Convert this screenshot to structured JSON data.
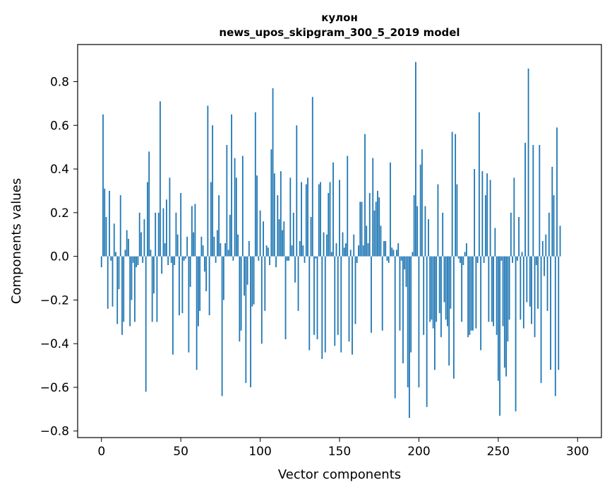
{
  "chart_data": {
    "type": "bar",
    "title": "кулон",
    "subtitle": "news_upos_skipgram_300_5_2019 model",
    "xlabel": "Vector components",
    "ylabel": "Components values",
    "xlim": [
      -15,
      315
    ],
    "ylim": [
      -0.83,
      0.97
    ],
    "xticks": [
      0,
      50,
      100,
      150,
      200,
      250,
      300
    ],
    "yticks": [
      -0.8,
      -0.6,
      -0.4,
      -0.2,
      0.0,
      0.2,
      0.4,
      0.6,
      0.8
    ],
    "ytick_labels": [
      "−0.8",
      "−0.6",
      "−0.4",
      "−0.2",
      "0.0",
      "0.2",
      "0.4",
      "0.6",
      "0.8"
    ],
    "bar_color": "#1f77b4",
    "values": [
      -0.05,
      0.65,
      0.31,
      0.18,
      -0.24,
      0.3,
      -0.02,
      -0.23,
      0.15,
      0.02,
      -0.31,
      -0.15,
      0.28,
      -0.36,
      -0.3,
      0.03,
      0.12,
      0.08,
      -0.32,
      -0.2,
      -0.03,
      -0.3,
      -0.05,
      -0.04,
      0.2,
      0.11,
      -0.03,
      0.17,
      -0.62,
      0.34,
      0.48,
      0.03,
      -0.3,
      -0.17,
      0.2,
      -0.3,
      0.2,
      0.71,
      -0.08,
      0.22,
      0.06,
      0.26,
      -0.04,
      0.36,
      -0.03,
      -0.45,
      -0.04,
      0.2,
      0.1,
      -0.27,
      0.29,
      -0.26,
      -0.02,
      -0.01,
      0.09,
      -0.44,
      -0.14,
      0.23,
      0.11,
      0.24,
      -0.52,
      -0.32,
      -0.25,
      0.09,
      0.05,
      -0.07,
      -0.16,
      0.69,
      -0.27,
      0.34,
      0.6,
      0.09,
      -0.03,
      0.12,
      0.28,
      0.06,
      -0.64,
      -0.2,
      0.06,
      0.51,
      0.03,
      0.19,
      0.65,
      -0.02,
      0.45,
      0.36,
      0.1,
      -0.39,
      -0.34,
      0.46,
      -0.18,
      -0.58,
      -0.13,
      0.07,
      -0.6,
      -0.23,
      -0.22,
      0.66,
      0.37,
      -0.02,
      0.21,
      -0.4,
      0.16,
      -0.25,
      0.05,
      0.04,
      -0.04,
      0.49,
      0.77,
      0.38,
      -0.05,
      0.28,
      0.17,
      0.39,
      0.12,
      0.16,
      -0.38,
      -0.02,
      -0.02,
      0.36,
      0.05,
      0.2,
      -0.12,
      0.6,
      -0.25,
      0.07,
      0.34,
      0.05,
      -0.03,
      0.33,
      0.36,
      -0.43,
      0.18,
      0.73,
      -0.36,
      -0.01,
      -0.38,
      0.33,
      0.34,
      -0.47,
      0.11,
      -0.44,
      0.1,
      0.29,
      0.34,
      0.02,
      0.43,
      -0.41,
      0.06,
      -0.36,
      0.35,
      -0.44,
      0.11,
      0.04,
      0.06,
      0.46,
      -0.39,
      0.03,
      -0.45,
      0.1,
      -0.31,
      -0.03,
      0.05,
      0.25,
      0.25,
      0.05,
      0.56,
      0.14,
      0.06,
      0.29,
      -0.35,
      0.45,
      0.21,
      0.25,
      0.3,
      0.27,
      0.14,
      -0.34,
      0.07,
      0.07,
      -0.02,
      -0.03,
      0.43,
      0.04,
      0.03,
      -0.65,
      0.03,
      0.06,
      -0.34,
      -0.02,
      -0.49,
      -0.06,
      -0.14,
      -0.6,
      -0.74,
      -0.44,
      0.02,
      0.28,
      0.89,
      0.23,
      -0.6,
      0.42,
      0.49,
      -0.36,
      0.23,
      -0.69,
      0.17,
      -0.3,
      -0.29,
      -0.33,
      -0.52,
      -0.3,
      0.33,
      -0.26,
      -0.37,
      0.2,
      -0.21,
      -0.29,
      -0.32,
      -0.5,
      -0.24,
      0.57,
      -0.56,
      0.56,
      0.33,
      -0.01,
      -0.03,
      -0.3,
      -0.04,
      0.02,
      0.06,
      -0.37,
      -0.36,
      -0.34,
      -0.34,
      0.4,
      -0.33,
      -0.03,
      0.66,
      -0.43,
      0.39,
      -0.03,
      0.28,
      0.38,
      -0.3,
      0.35,
      -0.3,
      -0.32,
      0.13,
      -0.36,
      -0.57,
      -0.73,
      -0.02,
      -0.32,
      -0.51,
      -0.55,
      -0.39,
      -0.29,
      0.2,
      -0.03,
      0.36,
      -0.71,
      -0.02,
      0.18,
      -0.29,
      0.02,
      -0.33,
      0.52,
      -0.21,
      0.86,
      -0.23,
      -0.31,
      0.51,
      -0.37,
      -0.04,
      -0.24,
      0.51,
      -0.58,
      0.07,
      -0.09,
      0.1,
      -0.25,
      0.2,
      -0.52,
      0.41,
      0.28,
      -0.64,
      0.59,
      -0.52,
      0.14
    ]
  }
}
